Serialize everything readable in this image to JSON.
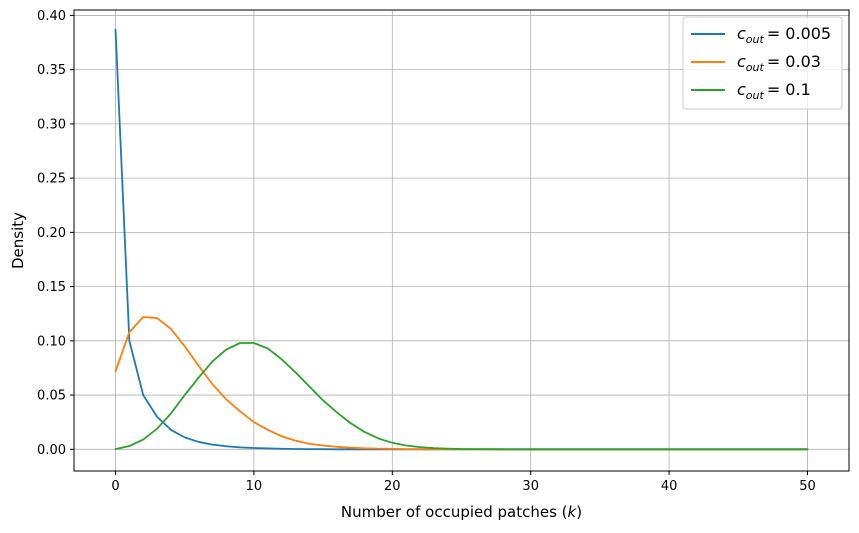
{
  "chart_data": {
    "type": "line",
    "xlabel": "Number of occupied patches (k)",
    "xlabel_prefix": "Number of occupied patches (",
    "xlabel_var": "k",
    "xlabel_suffix": ")",
    "ylabel": "Density",
    "xlim": [
      -3,
      53
    ],
    "ylim": [
      -0.02,
      0.405
    ],
    "xticks": [
      0,
      10,
      20,
      30,
      40,
      50
    ],
    "yticks": [
      0.0,
      0.05,
      0.1,
      0.15,
      0.2,
      0.25,
      0.3,
      0.35,
      0.4
    ],
    "ytick_labels": [
      "0.00",
      "0.05",
      "0.10",
      "0.15",
      "0.20",
      "0.25",
      "0.30",
      "0.35",
      "0.40"
    ],
    "grid": true,
    "legend_position": "top-right",
    "series": [
      {
        "name": "c_out = 0.005",
        "legend_var": "c",
        "legend_sub": "out",
        "legend_value": "= 0.005",
        "color": "#1f77b4",
        "x": [
          0,
          1,
          2,
          3,
          4,
          5,
          6,
          7,
          8,
          9,
          10,
          11,
          12,
          13,
          14,
          15,
          16,
          17,
          18,
          19,
          20,
          21,
          22,
          23,
          24,
          25,
          26,
          27,
          28,
          29,
          30,
          31,
          32,
          33,
          34,
          35,
          36,
          37,
          38,
          39,
          40,
          41,
          42,
          43,
          44,
          45,
          46,
          47,
          48,
          49,
          50
        ],
        "y": [
          0.387,
          0.1,
          0.05,
          0.03,
          0.018,
          0.011,
          0.0068,
          0.0043,
          0.0028,
          0.0018,
          0.0012,
          0.0008,
          0.0005,
          0.0003,
          0.0002,
          0.0001,
          0,
          0,
          0,
          0,
          0,
          0,
          0,
          0,
          0,
          0,
          0,
          0,
          0,
          0,
          0,
          0,
          0,
          0,
          0,
          0,
          0,
          0,
          0,
          0,
          0,
          0,
          0,
          0,
          0,
          0,
          0,
          0,
          0,
          0,
          0
        ]
      },
      {
        "name": "c_out = 0.03",
        "legend_var": "c",
        "legend_sub": "out",
        "legend_value": "= 0.03",
        "color": "#ff7f0e",
        "x": [
          0,
          1,
          2,
          3,
          4,
          5,
          6,
          7,
          8,
          9,
          10,
          11,
          12,
          13,
          14,
          15,
          16,
          17,
          18,
          19,
          20,
          21,
          22,
          23,
          24,
          25,
          26,
          27,
          28,
          29,
          30,
          31,
          32,
          33,
          34,
          35,
          36,
          37,
          38,
          39,
          40,
          41,
          42,
          43,
          44,
          45,
          46,
          47,
          48,
          49,
          50
        ],
        "y": [
          0.072,
          0.108,
          0.122,
          0.121,
          0.111,
          0.095,
          0.077,
          0.06,
          0.046,
          0.035,
          0.025,
          0.018,
          0.012,
          0.008,
          0.005,
          0.0035,
          0.0023,
          0.0015,
          0.0009,
          0.0006,
          0.0004,
          0.0002,
          0.0001,
          0,
          0,
          0,
          0,
          0,
          0,
          0,
          0,
          0,
          0,
          0,
          0,
          0,
          0,
          0,
          0,
          0,
          0,
          0,
          0,
          0,
          0,
          0,
          0,
          0,
          0,
          0,
          0
        ]
      },
      {
        "name": "c_out = 0.1",
        "legend_var": "c",
        "legend_sub": "out",
        "legend_value": "= 0.1",
        "color": "#2ca02c",
        "x": [
          0,
          1,
          2,
          3,
          4,
          5,
          6,
          7,
          8,
          9,
          10,
          11,
          12,
          13,
          14,
          15,
          16,
          17,
          18,
          19,
          20,
          21,
          22,
          23,
          24,
          25,
          26,
          27,
          28,
          29,
          30,
          31,
          32,
          33,
          34,
          35,
          36,
          37,
          38,
          39,
          40,
          41,
          42,
          43,
          44,
          45,
          46,
          47,
          48,
          49,
          50
        ],
        "y": [
          0.0002,
          0.003,
          0.009,
          0.019,
          0.033,
          0.05,
          0.066,
          0.081,
          0.092,
          0.098,
          0.098,
          0.093,
          0.083,
          0.071,
          0.058,
          0.045,
          0.034,
          0.024,
          0.016,
          0.01,
          0.006,
          0.0035,
          0.002,
          0.0011,
          0.0006,
          0.0003,
          0.0002,
          0.0001,
          0,
          0,
          0,
          0,
          0,
          0,
          0,
          0,
          0,
          0,
          0,
          0,
          0,
          0,
          0,
          0,
          0,
          0,
          0,
          0,
          0,
          0,
          0
        ]
      }
    ]
  }
}
